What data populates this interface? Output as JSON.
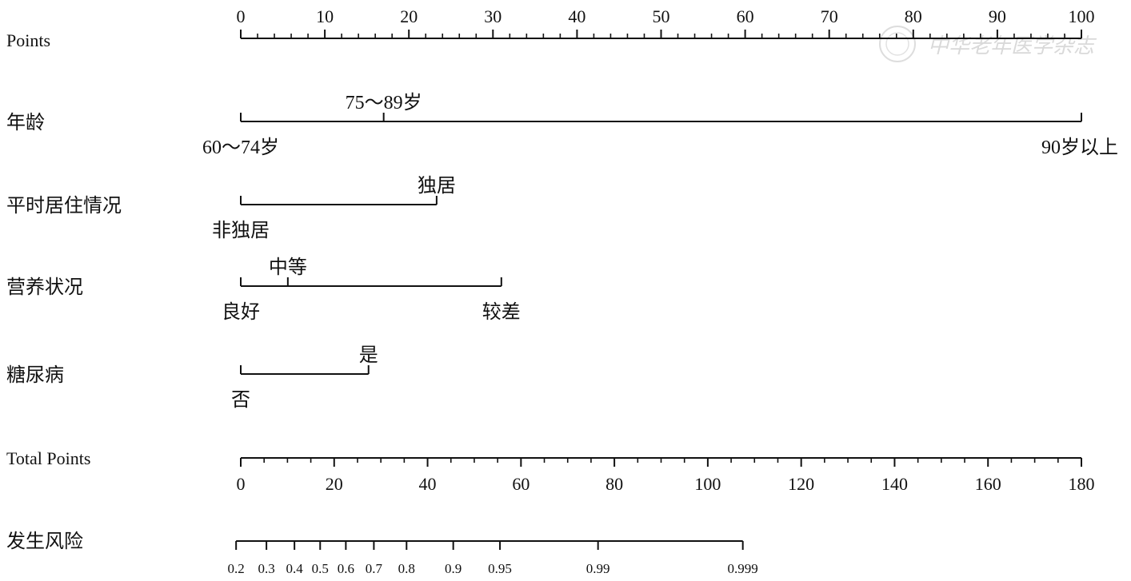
{
  "chart_data": {
    "type": "nomogram",
    "points_axis": {
      "label": "Points",
      "min": 0,
      "max": 100,
      "major_ticks": [
        0,
        10,
        20,
        30,
        40,
        50,
        60,
        70,
        80,
        90,
        100
      ],
      "minor_step": 2
    },
    "predictors": [
      {
        "name": "年龄",
        "levels": [
          {
            "label": "60～74岁",
            "points": 0
          },
          {
            "label": "75～89岁",
            "points": 17
          },
          {
            "label": "90岁以上",
            "points": 100
          }
        ]
      },
      {
        "name": "平时居住情况",
        "levels": [
          {
            "label": "非独居",
            "points": 0
          },
          {
            "label": "独居",
            "points": 23.3
          }
        ]
      },
      {
        "name": "营养状况",
        "levels": [
          {
            "label": "良好",
            "points": 0
          },
          {
            "label": "中等",
            "points": 5.6
          },
          {
            "label": "较差",
            "points": 31
          }
        ]
      },
      {
        "name": "糖尿病",
        "levels": [
          {
            "label": "否",
            "points": 0
          },
          {
            "label": "是",
            "points": 15.2
          }
        ]
      }
    ],
    "total_points_axis": {
      "label": "Total Points",
      "min": 0,
      "max": 180,
      "major_ticks": [
        0,
        20,
        40,
        60,
        80,
        100,
        120,
        140,
        160,
        180
      ],
      "minor_step": 5
    },
    "risk_axis": {
      "label": "发生风险",
      "ticks": [
        {
          "label": "0.2",
          "total_points": -1
        },
        {
          "label": "0.3",
          "total_points": 5.5
        },
        {
          "label": "0.4",
          "total_points": 11.5
        },
        {
          "label": "0.5",
          "total_points": 17
        },
        {
          "label": "0.6",
          "total_points": 22.5
        },
        {
          "label": "0.7",
          "total_points": 28.5
        },
        {
          "label": "0.8",
          "total_points": 35.5
        },
        {
          "label": "0.9",
          "total_points": 45.5
        },
        {
          "label": "0.95",
          "total_points": 55.5
        },
        {
          "label": "0.99",
          "total_points": 76.5
        },
        {
          "label": "0.999",
          "total_points": 107.5
        }
      ]
    }
  },
  "watermark": "中华老年医学杂志"
}
